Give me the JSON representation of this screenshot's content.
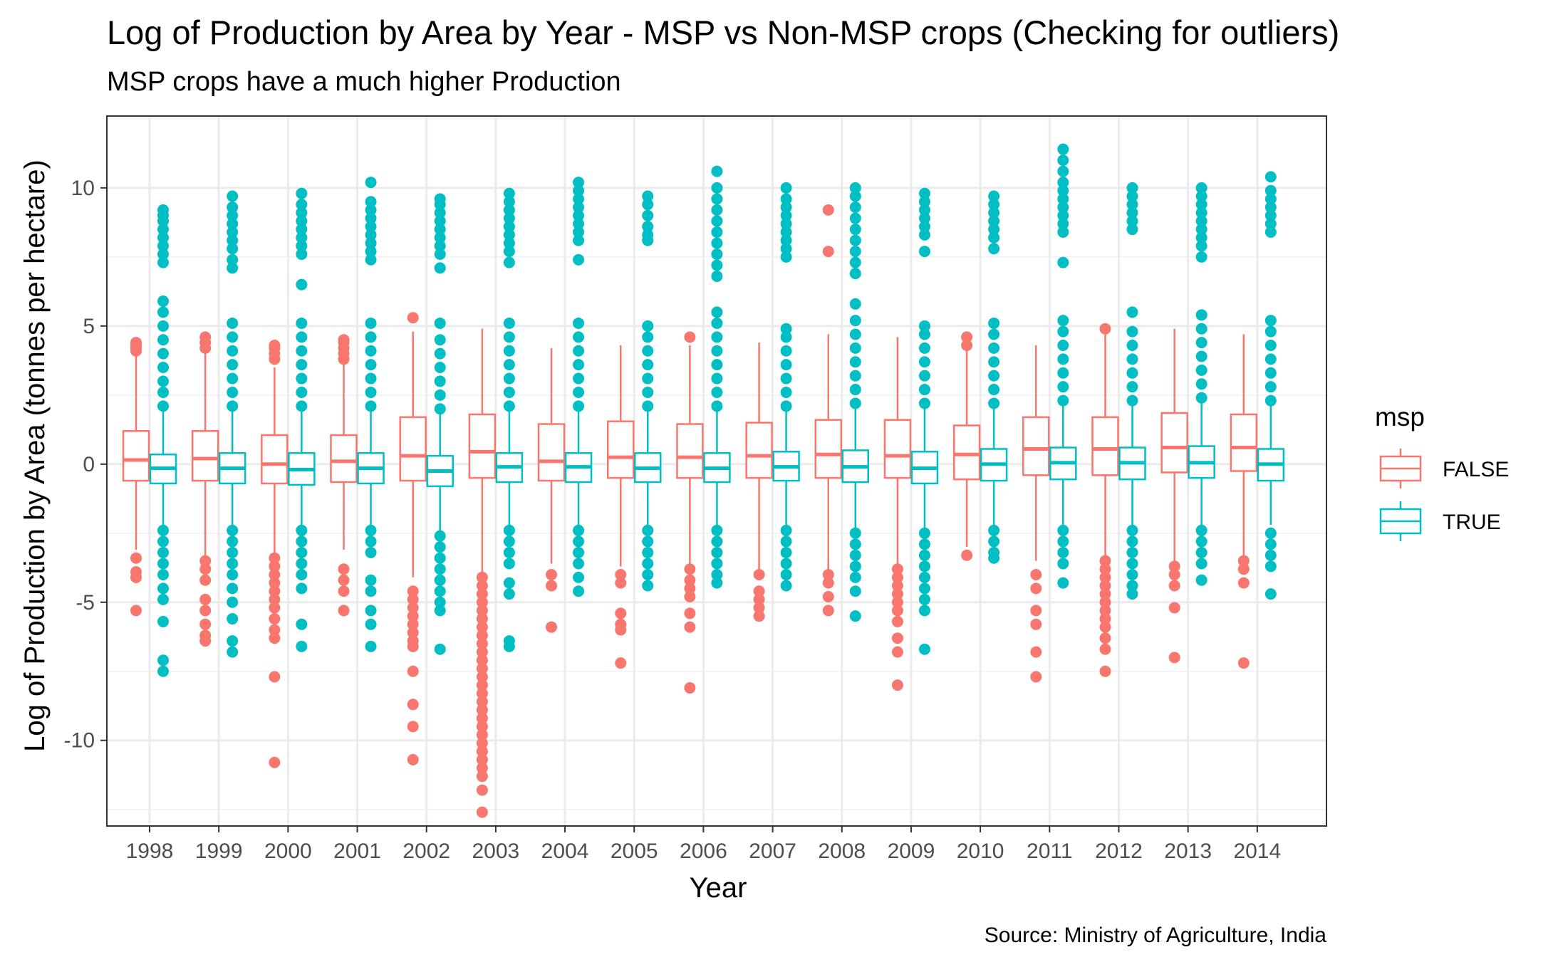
{
  "chart_data": {
    "type": "boxplot",
    "title": "Log of Production by Area by Year - MSP vs Non-MSP crops (Checking for outliers)",
    "subtitle": "MSP crops have a much higher Production",
    "xlabel": "Year",
    "ylabel": "Log of Production by Area (tonnes per hectare)",
    "caption": "Source: Ministry of Agriculture, India",
    "ylim": [
      -13.1,
      12.6
    ],
    "yticks": [
      -10,
      -5,
      0,
      5,
      10
    ],
    "grid": true,
    "legend": {
      "title": "msp",
      "position": "right"
    },
    "colors": {
      "FALSE": "#F8766D",
      "TRUE": "#00BFC4"
    },
    "categories": [
      "1998",
      "1999",
      "2000",
      "2001",
      "2002",
      "2003",
      "2004",
      "2005",
      "2006",
      "2007",
      "2008",
      "2009",
      "2010",
      "2011",
      "2012",
      "2013",
      "2014"
    ],
    "series": [
      {
        "name": "FALSE",
        "boxes": [
          {
            "q1": -0.6,
            "median": 0.15,
            "q3": 1.2,
            "lower": -3.1,
            "upper": 4.0
          },
          {
            "q1": -0.6,
            "median": 0.2,
            "q3": 1.2,
            "lower": -3.3,
            "upper": 4.1
          },
          {
            "q1": -0.7,
            "median": 0.0,
            "q3": 1.05,
            "lower": -3.3,
            "upper": 3.5
          },
          {
            "q1": -0.65,
            "median": 0.1,
            "q3": 1.05,
            "lower": -3.1,
            "upper": 3.6
          },
          {
            "q1": -0.6,
            "median": 0.3,
            "q3": 1.7,
            "lower": -4.1,
            "upper": 4.8
          },
          {
            "q1": -0.5,
            "median": 0.45,
            "q3": 1.8,
            "lower": -4.0,
            "upper": 4.9
          },
          {
            "q1": -0.6,
            "median": 0.1,
            "q3": 1.45,
            "lower": -3.6,
            "upper": 4.2
          },
          {
            "q1": -0.5,
            "median": 0.25,
            "q3": 1.55,
            "lower": -3.7,
            "upper": 4.3
          },
          {
            "q1": -0.5,
            "median": 0.25,
            "q3": 1.45,
            "lower": -3.6,
            "upper": 4.3
          },
          {
            "q1": -0.5,
            "median": 0.3,
            "q3": 1.5,
            "lower": -3.9,
            "upper": 4.4
          },
          {
            "q1": -0.5,
            "median": 0.35,
            "q3": 1.6,
            "lower": -3.8,
            "upper": 4.7
          },
          {
            "q1": -0.5,
            "median": 0.3,
            "q3": 1.6,
            "lower": -3.7,
            "upper": 4.6
          },
          {
            "q1": -0.55,
            "median": 0.35,
            "q3": 1.4,
            "lower": -3.0,
            "upper": 4.2
          },
          {
            "q1": -0.4,
            "median": 0.55,
            "q3": 1.7,
            "lower": -3.5,
            "upper": 4.3
          },
          {
            "q1": -0.4,
            "median": 0.55,
            "q3": 1.7,
            "lower": -3.4,
            "upper": 4.8
          },
          {
            "q1": -0.3,
            "median": 0.6,
            "q3": 1.85,
            "lower": -3.6,
            "upper": 4.9
          },
          {
            "q1": -0.25,
            "median": 0.6,
            "q3": 1.8,
            "lower": -3.3,
            "upper": 4.7
          }
        ],
        "outliers": [
          [
            4.1,
            4.2,
            4.3,
            4.4,
            -3.4,
            -3.9,
            -4.1,
            -5.3
          ],
          [
            4.2,
            4.4,
            4.6,
            -3.5,
            -3.8,
            -4.2,
            -4.9,
            -5.3,
            -5.8,
            -6.2,
            -6.4
          ],
          [
            3.8,
            4.0,
            4.2,
            4.3,
            -3.4,
            -3.7,
            -4.0,
            -4.3,
            -4.6,
            -4.9,
            -5.2,
            -5.6,
            -6.0,
            -6.3,
            -7.7,
            -10.8
          ],
          [
            3.8,
            4.0,
            4.2,
            4.4,
            4.5,
            -3.8,
            -4.2,
            -4.6,
            -5.3
          ],
          [
            5.3,
            -4.6,
            -4.9,
            -5.2,
            -5.5,
            -5.8,
            -6.1,
            -6.4,
            -6.6,
            -7.5,
            -8.7,
            -9.5,
            -10.7
          ],
          [
            -4.1,
            -4.4,
            -4.7,
            -5.0,
            -5.3,
            -5.6,
            -5.9,
            -6.2,
            -6.5,
            -6.8,
            -7.1,
            -7.4,
            -7.7,
            -8.0,
            -8.3,
            -8.6,
            -8.9,
            -9.2,
            -9.5,
            -9.8,
            -10.1,
            -10.4,
            -10.7,
            -11.0,
            -11.3,
            -11.8,
            -12.6
          ],
          [
            -4.0,
            -4.4,
            -5.9
          ],
          [
            -4.0,
            -4.3,
            -5.4,
            -5.8,
            -6.0,
            -7.2
          ],
          [
            4.6,
            -3.8,
            -4.2,
            -4.5,
            -4.8,
            -5.4,
            -5.9,
            -8.1
          ],
          [
            -4.0,
            -4.6,
            -4.9,
            -5.2,
            -5.5
          ],
          [
            9.2,
            7.7,
            -4.0,
            -4.3,
            -4.8,
            -5.3
          ],
          [
            -3.8,
            -4.1,
            -4.4,
            -4.7,
            -5.0,
            -5.3,
            -5.7,
            -6.3,
            -6.8,
            -8.0
          ],
          [
            4.3,
            4.6,
            -3.3
          ],
          [
            -4.0,
            -4.5,
            -5.3,
            -5.8,
            -6.8,
            -7.7
          ],
          [
            4.9,
            -3.5,
            -3.8,
            -4.1,
            -4.4,
            -4.7,
            -5.0,
            -5.3,
            -5.6,
            -5.9,
            -6.3,
            -6.7,
            -7.5
          ],
          [
            -3.7,
            -4.0,
            -4.4,
            -5.2,
            -7.0
          ],
          [
            -3.5,
            -3.8,
            -4.3,
            -7.2
          ]
        ]
      },
      {
        "name": "TRUE",
        "boxes": [
          {
            "q1": -0.7,
            "median": -0.15,
            "q3": 0.35,
            "lower": -2.2,
            "upper": 2.0
          },
          {
            "q1": -0.7,
            "median": -0.15,
            "q3": 0.4,
            "lower": -2.2,
            "upper": 2.0
          },
          {
            "q1": -0.75,
            "median": -0.2,
            "q3": 0.4,
            "lower": -2.3,
            "upper": 2.0
          },
          {
            "q1": -0.7,
            "median": -0.15,
            "q3": 0.4,
            "lower": -2.3,
            "upper": 2.0
          },
          {
            "q1": -0.8,
            "median": -0.25,
            "q3": 0.3,
            "lower": -2.4,
            "upper": 1.9
          },
          {
            "q1": -0.65,
            "median": -0.1,
            "q3": 0.4,
            "lower": -2.2,
            "upper": 2.0
          },
          {
            "q1": -0.65,
            "median": -0.1,
            "q3": 0.4,
            "lower": -2.2,
            "upper": 2.0
          },
          {
            "q1": -0.65,
            "median": -0.15,
            "q3": 0.4,
            "lower": -2.2,
            "upper": 2.0
          },
          {
            "q1": -0.65,
            "median": -0.15,
            "q3": 0.4,
            "lower": -2.2,
            "upper": 2.0
          },
          {
            "q1": -0.6,
            "median": -0.1,
            "q3": 0.45,
            "lower": -2.2,
            "upper": 2.0
          },
          {
            "q1": -0.65,
            "median": -0.1,
            "q3": 0.5,
            "lower": -2.3,
            "upper": 2.1
          },
          {
            "q1": -0.7,
            "median": -0.15,
            "q3": 0.45,
            "lower": -2.3,
            "upper": 2.1
          },
          {
            "q1": -0.6,
            "median": 0.0,
            "q3": 0.55,
            "lower": -2.2,
            "upper": 2.1
          },
          {
            "q1": -0.55,
            "median": 0.05,
            "q3": 0.6,
            "lower": -2.2,
            "upper": 2.2
          },
          {
            "q1": -0.55,
            "median": 0.05,
            "q3": 0.6,
            "lower": -2.2,
            "upper": 2.2
          },
          {
            "q1": -0.5,
            "median": 0.05,
            "q3": 0.65,
            "lower": -2.2,
            "upper": 2.3
          },
          {
            "q1": -0.6,
            "median": 0.0,
            "q3": 0.55,
            "lower": -2.2,
            "upper": 2.2
          }
        ],
        "outliers": [
          [
            2.1,
            2.6,
            3.0,
            3.5,
            4.0,
            4.5,
            5.0,
            5.5,
            5.9,
            7.3,
            7.6,
            7.9,
            8.2,
            8.5,
            8.8,
            9.0,
            9.2,
            -2.4,
            -2.8,
            -3.2,
            -3.6,
            -4.0,
            -4.5,
            -4.9,
            -5.7,
            -7.1,
            -7.5
          ],
          [
            2.1,
            2.6,
            3.1,
            3.6,
            4.1,
            4.6,
            5.1,
            7.1,
            7.4,
            7.8,
            8.1,
            8.4,
            8.7,
            9.0,
            9.3,
            9.7,
            -2.4,
            -2.8,
            -3.2,
            -3.6,
            -4.0,
            -4.5,
            -5.0,
            -5.6,
            -6.4,
            -6.8
          ],
          [
            2.1,
            2.6,
            3.1,
            3.6,
            4.1,
            4.6,
            5.1,
            6.5,
            7.6,
            7.9,
            8.2,
            8.5,
            8.8,
            9.1,
            9.4,
            9.8,
            -2.4,
            -2.8,
            -3.2,
            -3.6,
            -4.0,
            -4.5,
            -5.8,
            -6.6
          ],
          [
            2.1,
            2.6,
            3.1,
            3.6,
            4.1,
            4.6,
            5.1,
            7.4,
            7.7,
            8.0,
            8.3,
            8.6,
            8.9,
            9.2,
            9.5,
            10.2,
            -2.4,
            -2.8,
            -3.2,
            -4.2,
            -4.6,
            -5.3,
            -5.8,
            -6.6
          ],
          [
            2.0,
            2.5,
            3.0,
            3.5,
            4.0,
            4.5,
            5.1,
            7.1,
            7.6,
            7.9,
            8.2,
            8.5,
            8.8,
            9.1,
            9.4,
            9.6,
            -2.6,
            -3.0,
            -3.4,
            -3.8,
            -4.2,
            -4.6,
            -5.0,
            -5.3,
            -6.7
          ],
          [
            2.1,
            2.6,
            3.1,
            3.6,
            4.1,
            4.6,
            5.1,
            7.3,
            7.7,
            8.0,
            8.3,
            8.6,
            8.9,
            9.2,
            9.5,
            9.8,
            -2.4,
            -2.8,
            -3.2,
            -3.6,
            -4.3,
            -4.7,
            -6.4,
            -6.6
          ],
          [
            2.1,
            2.6,
            3.1,
            3.6,
            4.1,
            4.6,
            5.1,
            7.4,
            8.1,
            8.4,
            8.7,
            9.0,
            9.3,
            9.6,
            9.9,
            10.2,
            -2.4,
            -2.8,
            -3.2,
            -3.6,
            -4.1,
            -4.6
          ],
          [
            2.1,
            2.6,
            3.1,
            3.6,
            4.1,
            4.6,
            5.0,
            8.1,
            8.3,
            8.6,
            9.0,
            9.4,
            9.7,
            -2.4,
            -2.8,
            -3.2,
            -3.6,
            -4.0,
            -4.4
          ],
          [
            2.1,
            2.6,
            3.1,
            3.6,
            4.1,
            4.6,
            5.1,
            5.5,
            6.8,
            7.2,
            7.6,
            8.0,
            8.4,
            8.8,
            9.2,
            9.6,
            10.0,
            10.6,
            -2.4,
            -2.8,
            -3.2,
            -3.6,
            -4.0,
            -4.3
          ],
          [
            2.1,
            2.6,
            3.1,
            3.6,
            4.1,
            4.6,
            4.9,
            7.5,
            7.8,
            8.1,
            8.4,
            8.7,
            9.0,
            9.3,
            9.6,
            10.0,
            -2.4,
            -2.8,
            -3.2,
            -3.6,
            -4.0,
            -4.4
          ],
          [
            2.2,
            2.7,
            3.2,
            3.7,
            4.2,
            4.7,
            5.2,
            5.8,
            6.9,
            7.3,
            7.7,
            8.1,
            8.5,
            8.9,
            9.3,
            9.7,
            10.0,
            -2.5,
            -2.9,
            -3.3,
            -3.7,
            -4.1,
            -4.6,
            -5.5
          ],
          [
            2.2,
            2.7,
            3.2,
            3.7,
            4.2,
            4.7,
            5.0,
            7.7,
            8.3,
            8.6,
            8.9,
            9.2,
            9.5,
            9.8,
            -2.5,
            -2.9,
            -3.3,
            -3.7,
            -4.1,
            -4.5,
            -4.9,
            -5.3,
            -6.7
          ],
          [
            2.2,
            2.7,
            3.2,
            3.7,
            4.2,
            4.7,
            5.1,
            7.8,
            8.2,
            8.5,
            8.8,
            9.1,
            9.4,
            9.7,
            -2.4,
            -2.8,
            -3.2,
            -3.4
          ],
          [
            2.3,
            2.8,
            3.3,
            3.8,
            4.3,
            4.8,
            5.2,
            7.3,
            8.4,
            8.7,
            9.0,
            9.3,
            9.6,
            9.9,
            10.2,
            10.6,
            11.0,
            11.4,
            -2.4,
            -2.8,
            -3.2,
            -3.6,
            -4.3
          ],
          [
            2.3,
            2.8,
            3.3,
            3.8,
            4.3,
            4.8,
            5.5,
            8.5,
            8.8,
            9.1,
            9.4,
            9.7,
            10.0,
            -2.4,
            -2.8,
            -3.2,
            -3.6,
            -4.0,
            -4.4,
            -4.7
          ],
          [
            2.4,
            2.9,
            3.4,
            3.9,
            4.4,
            4.9,
            5.4,
            7.5,
            7.9,
            8.2,
            8.5,
            8.8,
            9.1,
            9.4,
            9.7,
            10.0,
            -2.4,
            -2.8,
            -3.2,
            -3.6,
            -4.2
          ],
          [
            2.3,
            2.8,
            3.3,
            3.8,
            4.3,
            4.8,
            5.2,
            8.4,
            8.7,
            9.0,
            9.3,
            9.6,
            9.9,
            10.4,
            -2.5,
            -2.9,
            -3.3,
            -3.7,
            -4.7
          ]
        ]
      }
    ]
  }
}
